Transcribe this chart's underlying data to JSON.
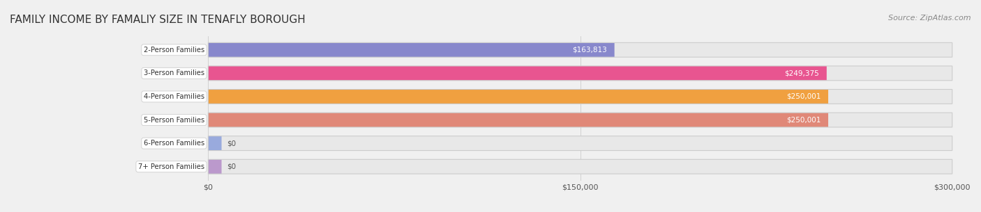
{
  "title": "FAMILY INCOME BY FAMALIY SIZE IN TENAFLY BOROUGH",
  "source": "Source: ZipAtlas.com",
  "categories": [
    "2-Person Families",
    "3-Person Families",
    "4-Person Families",
    "5-Person Families",
    "6-Person Families",
    "7+ Person Families"
  ],
  "values": [
    163813,
    249375,
    250001,
    250001,
    0,
    0
  ],
  "bar_colors": [
    "#8888cc",
    "#e85590",
    "#f0a040",
    "#e08878",
    "#99aadd",
    "#bb99cc"
  ],
  "label_colors": [
    "#333333",
    "#ffffff",
    "#ffffff",
    "#ffffff",
    "#333333",
    "#333333"
  ],
  "label_bg_colors": [
    "#ffffff",
    "#e85590",
    "#f0a040",
    "#e08878",
    "#ffffff",
    "#ffffff"
  ],
  "value_labels": [
    "$163,813",
    "$249,375",
    "$250,001",
    "$250,001",
    "$0",
    "$0"
  ],
  "xmax": 300000,
  "xticks": [
    0,
    150000,
    300000
  ],
  "xtick_labels": [
    "$0",
    "$150,000",
    "$300,000"
  ],
  "background_color": "#f0f0f0",
  "bar_bg_color": "#e8e8e8",
  "title_fontsize": 11,
  "source_fontsize": 8
}
